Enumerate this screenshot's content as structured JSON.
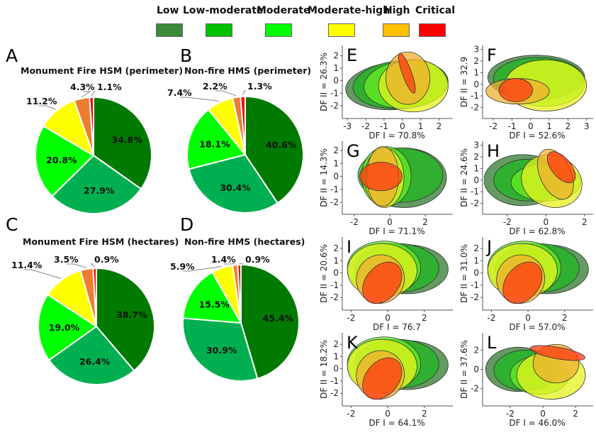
{
  "legend": {
    "items": [
      {
        "label": "Low",
        "color": "#3a8c3a"
      },
      {
        "label": "Low-moderate",
        "color": "#00c000"
      },
      {
        "label": "Moderate",
        "color": "#00ff00"
      },
      {
        "label": "Moderate-high",
        "color": "#ffff00"
      },
      {
        "label": "High",
        "color": "#ffc000"
      },
      {
        "label": "Critical",
        "color": "#ff0000"
      }
    ]
  },
  "chart_data": [
    {
      "panel": "A",
      "type": "pie",
      "title": "Monument Fire HSM (perimeter)",
      "categories": [
        "Low",
        "Low-moderate",
        "Moderate",
        "Moderate-high",
        "High",
        "Critical"
      ],
      "values": [
        34.8,
        27.9,
        20.8,
        11.2,
        4.3,
        1.1
      ],
      "labels": [
        "34.8%",
        "27.9%",
        "20.8%",
        "11.2%",
        "4.3%",
        "1.1%"
      ],
      "colors": [
        "#007a00",
        "#00b050",
        "#00ff00",
        "#ffff00",
        "#ed7d31",
        "#ff0000"
      ]
    },
    {
      "panel": "B",
      "type": "pie",
      "title": "Non-fire HMS (perimeter)",
      "categories": [
        "Low",
        "Low-moderate",
        "Moderate",
        "Moderate-high",
        "High",
        "Critical"
      ],
      "values": [
        40.6,
        30.4,
        18.1,
        7.4,
        2.2,
        1.3
      ],
      "labels": [
        "40.6%",
        "30.4%",
        "18.1%",
        "7.4%",
        "2.2%",
        "1.3%"
      ],
      "colors": [
        "#007a00",
        "#00b050",
        "#00ff00",
        "#ffff00",
        "#ed7d31",
        "#ff0000"
      ]
    },
    {
      "panel": "C",
      "type": "pie",
      "title": "Monument Fire HSM (hectares)",
      "categories": [
        "Low",
        "Low-moderate",
        "Moderate",
        "Moderate-high",
        "High",
        "Critical"
      ],
      "values": [
        38.7,
        26.4,
        19.0,
        11.4,
        3.5,
        0.9
      ],
      "labels": [
        "38.7%",
        "26.4%",
        "19.0%",
        "11.4%",
        "3.5%",
        "0.9%"
      ],
      "colors": [
        "#007a00",
        "#00b050",
        "#00ff00",
        "#ffff00",
        "#ed7d31",
        "#ff0000"
      ]
    },
    {
      "panel": "D",
      "type": "pie",
      "title": "Non-fire HMS (hectares)",
      "categories": [
        "Low",
        "Low-moderate",
        "Moderate",
        "Moderate-high",
        "High",
        "Critical"
      ],
      "values": [
        45.4,
        30.9,
        15.5,
        5.9,
        1.4,
        0.9
      ],
      "labels": [
        "45.4%",
        "30.9%",
        "15.5%",
        "5.9%",
        "1.4%",
        "0.9%"
      ],
      "colors": [
        "#007a00",
        "#00b050",
        "#00ff00",
        "#ffff00",
        "#ed7d31",
        "#ff0000"
      ]
    },
    {
      "panel": "E",
      "type": "scatter",
      "subtype": "ellipses",
      "xlabel": "DF I = 70.8%",
      "ylabel": "DF II = 26.3%",
      "xticks": [
        "-3",
        "-2",
        "-1",
        "0",
        "1",
        "2"
      ],
      "yticks": [
        "2",
        "1",
        "0",
        "-1",
        "-2"
      ],
      "xlim": [
        -3.2,
        2.6
      ],
      "ylim": [
        -2.8,
        2.6
      ],
      "ellipses": [
        {
          "class": "Low",
          "cx": -0.3,
          "cy": -0.4,
          "rx": 2.8,
          "ry": 1.9,
          "angle": 5
        },
        {
          "class": "Low-moderate",
          "cx": -0.1,
          "cy": -0.3,
          "rx": 2.6,
          "ry": 1.9,
          "angle": 5
        },
        {
          "class": "Moderate",
          "cx": 0.2,
          "cy": -0.3,
          "rx": 2.3,
          "ry": 1.9,
          "angle": 5
        },
        {
          "class": "Moderate-high",
          "cx": 0.6,
          "cy": -0.4,
          "rx": 1.9,
          "ry": 2.1,
          "angle": 0
        },
        {
          "class": "High",
          "cx": 0.3,
          "cy": 0.2,
          "rx": 1.2,
          "ry": 2.1,
          "angle": 0
        },
        {
          "class": "Critical",
          "cx": 0.25,
          "cy": 0.6,
          "rx": 0.25,
          "ry": 1.7,
          "angle": 20
        }
      ]
    },
    {
      "panel": "F",
      "type": "scatter",
      "subtype": "ellipses",
      "xlabel": "DF I = 52.6%",
      "ylabel": "DF II = 32.9",
      "xticks": [
        "-2",
        "-1",
        "0",
        "1",
        "2",
        "3"
      ],
      "yticks": [
        "3",
        "2",
        "1",
        "0",
        "-1",
        "-2"
      ],
      "xlim": [
        -2.5,
        3.2
      ],
      "ylim": [
        -2.7,
        3.1
      ],
      "ellipses": [
        {
          "class": "Low",
          "cx": 0.3,
          "cy": 0.6,
          "rx": 2.6,
          "ry": 1.9,
          "angle": 0
        },
        {
          "class": "Low-moderate",
          "cx": 0.4,
          "cy": 0.5,
          "rx": 2.4,
          "ry": 1.8,
          "angle": 0
        },
        {
          "class": "Moderate",
          "cx": 0.8,
          "cy": 0.1,
          "rx": 2.1,
          "ry": 2.0,
          "angle": 0
        },
        {
          "class": "Moderate-high",
          "cx": 0.8,
          "cy": -0.1,
          "rx": 2.2,
          "ry": 2.2,
          "angle": 0
        },
        {
          "class": "High",
          "cx": -0.7,
          "cy": -0.6,
          "rx": 1.7,
          "ry": 1.1,
          "angle": 0
        },
        {
          "class": "Critical",
          "cx": -0.8,
          "cy": -0.5,
          "rx": 0.9,
          "ry": 1.0,
          "angle": 0
        }
      ]
    },
    {
      "panel": "G",
      "type": "scatter",
      "subtype": "ellipses",
      "xlabel": "DF I = 71.1%",
      "ylabel": "DF II = 14.3%",
      "xticks": [
        "-2",
        "0",
        "2"
      ],
      "yticks": [
        "2",
        "1",
        "0",
        "-1",
        "-2"
      ],
      "xlim": [
        -2.6,
        3.4
      ],
      "ylim": [
        -2.7,
        2.5
      ],
      "ellipses": [
        {
          "class": "Low",
          "cx": 0.8,
          "cy": -0.1,
          "rx": 2.4,
          "ry": 2.3,
          "angle": 0
        },
        {
          "class": "Low-moderate",
          "cx": 0.6,
          "cy": 0.1,
          "rx": 2.4,
          "ry": 2.1,
          "angle": 0
        },
        {
          "class": "Moderate",
          "cx": -0.2,
          "cy": 0.0,
          "rx": 1.4,
          "ry": 2.3,
          "angle": 0
        },
        {
          "class": "Moderate-high",
          "cx": -0.3,
          "cy": -0.1,
          "rx": 1.1,
          "ry": 2.3,
          "angle": 0
        },
        {
          "class": "High",
          "cx": -0.4,
          "cy": 0.0,
          "rx": 0.9,
          "ry": 2.3,
          "angle": 0
        },
        {
          "class": "Critical",
          "cx": -0.5,
          "cy": 0.0,
          "rx": 1.2,
          "ry": 1.1,
          "angle": 0
        }
      ]
    },
    {
      "panel": "H",
      "type": "scatter",
      "subtype": "ellipses",
      "xlabel": "DF I = 62.8%",
      "ylabel": "DF II = 24.6%",
      "xticks": [
        "-2",
        "0",
        "2"
      ],
      "yticks": [
        "3",
        "2",
        "1",
        "0",
        "-1",
        "-2"
      ],
      "xlim": [
        -3.2,
        2.3
      ],
      "ylim": [
        -2.7,
        3.1
      ],
      "ellipses": [
        {
          "class": "Low",
          "cx": -1.2,
          "cy": 0.0,
          "rx": 2.0,
          "ry": 2.2,
          "angle": 0
        },
        {
          "class": "Low-moderate",
          "cx": -0.9,
          "cy": 0.0,
          "rx": 1.8,
          "ry": 1.8,
          "angle": 0
        },
        {
          "class": "Moderate",
          "cx": 0.0,
          "cy": -0.2,
          "rx": 1.8,
          "ry": 1.6,
          "angle": 0
        },
        {
          "class": "Moderate-high",
          "cx": 0.3,
          "cy": -0.1,
          "rx": 1.6,
          "ry": 2.2,
          "angle": -20
        },
        {
          "class": "High",
          "cx": 0.5,
          "cy": 0.5,
          "rx": 0.8,
          "ry": 2.3,
          "angle": 25
        },
        {
          "class": "Critical",
          "cx": 0.8,
          "cy": 1.1,
          "rx": 0.5,
          "ry": 1.6,
          "angle": 40
        }
      ]
    },
    {
      "panel": "I",
      "type": "scatter",
      "subtype": "ellipses",
      "xlabel": "DF I = 76.7",
      "ylabel": "DF II = 20.6%",
      "xticks": [
        "-2",
        "0",
        "2"
      ],
      "yticks": [
        "2",
        "1",
        "0",
        "-1",
        "-2"
      ],
      "xlim": [
        -2.4,
        3.4
      ],
      "ylim": [
        -2.8,
        2.7
      ],
      "ellipses": [
        {
          "class": "Low",
          "cx": 1.0,
          "cy": 0.3,
          "rx": 2.3,
          "ry": 2.0,
          "angle": 0
        },
        {
          "class": "Low-moderate",
          "cx": 0.5,
          "cy": 0.4,
          "rx": 2.3,
          "ry": 2.0,
          "angle": 0
        },
        {
          "class": "Moderate",
          "cx": -0.2,
          "cy": 0.4,
          "rx": 2.0,
          "ry": 2.2,
          "angle": 0
        },
        {
          "class": "Moderate-high",
          "cx": -0.3,
          "cy": 0.2,
          "rx": 1.9,
          "ry": 2.2,
          "angle": 0
        },
        {
          "class": "High",
          "cx": -0.4,
          "cy": -0.5,
          "rx": 1.3,
          "ry": 2.0,
          "angle": -35
        },
        {
          "class": "Critical",
          "cx": -0.3,
          "cy": -0.8,
          "rx": 0.9,
          "ry": 1.9,
          "angle": -40
        }
      ]
    },
    {
      "panel": "J",
      "type": "scatter",
      "subtype": "ellipses",
      "xlabel": "DF I = 57.0%",
      "ylabel": "DF II = 31.0%",
      "xticks": [
        "-2",
        "0",
        "2"
      ],
      "yticks": [
        "2",
        "1",
        "0",
        "-1",
        "-2"
      ],
      "xlim": [
        -2.4,
        3.4
      ],
      "ylim": [
        -2.8,
        2.7
      ],
      "ellipses": [
        {
          "class": "Low",
          "cx": 1.0,
          "cy": 0.3,
          "rx": 2.3,
          "ry": 2.0,
          "angle": 0
        },
        {
          "class": "Low-moderate",
          "cx": 0.5,
          "cy": 0.4,
          "rx": 2.3,
          "ry": 2.0,
          "angle": 0
        },
        {
          "class": "Moderate",
          "cx": -0.2,
          "cy": 0.4,
          "rx": 2.0,
          "ry": 2.2,
          "angle": 0
        },
        {
          "class": "Moderate-high",
          "cx": -0.3,
          "cy": 0.2,
          "rx": 1.9,
          "ry": 2.2,
          "angle": 0
        },
        {
          "class": "High",
          "cx": -0.4,
          "cy": -0.5,
          "rx": 1.3,
          "ry": 2.0,
          "angle": -35
        },
        {
          "class": "Critical",
          "cx": -0.3,
          "cy": -0.8,
          "rx": 0.9,
          "ry": 1.9,
          "angle": -40
        }
      ]
    },
    {
      "panel": "K",
      "type": "scatter",
      "subtype": "ellipses",
      "xlabel": "DF I = 64.1%",
      "ylabel": "DF II = 18.2%",
      "xticks": [
        "-2",
        "0",
        "2"
      ],
      "yticks": [
        "2",
        "1",
        "0",
        "-1",
        "-2"
      ],
      "xlim": [
        -2.4,
        3.4
      ],
      "ylim": [
        -2.8,
        2.7
      ],
      "ellipses": [
        {
          "class": "Low",
          "cx": 1.0,
          "cy": 0.3,
          "rx": 2.3,
          "ry": 2.0,
          "angle": 0
        },
        {
          "class": "Low-moderate",
          "cx": 0.5,
          "cy": 0.4,
          "rx": 2.3,
          "ry": 2.0,
          "angle": 0
        },
        {
          "class": "Moderate",
          "cx": -0.2,
          "cy": 0.4,
          "rx": 2.0,
          "ry": 2.2,
          "angle": 0
        },
        {
          "class": "Moderate-high",
          "cx": -0.3,
          "cy": 0.2,
          "rx": 1.9,
          "ry": 2.2,
          "angle": 0
        },
        {
          "class": "High",
          "cx": -0.4,
          "cy": -0.5,
          "rx": 1.3,
          "ry": 2.0,
          "angle": -35
        },
        {
          "class": "Critical",
          "cx": -0.3,
          "cy": -0.8,
          "rx": 0.9,
          "ry": 1.9,
          "angle": -40
        }
      ]
    },
    {
      "panel": "L",
      "type": "scatter",
      "subtype": "ellipses",
      "xlabel": "DF I = 46.0%",
      "ylabel": "DF II = 37.6%",
      "xticks": [
        "-2",
        "0",
        "2"
      ],
      "yticks": [
        "2",
        "0",
        "-2"
      ],
      "xlim": [
        -3.6,
        2.9
      ],
      "ylim": [
        -3.5,
        3.5
      ],
      "ellipses": [
        {
          "class": "Low",
          "cx": -1.5,
          "cy": 0.0,
          "rx": 2.0,
          "ry": 2.3,
          "angle": 0
        },
        {
          "class": "Low-moderate",
          "cx": -1.0,
          "cy": -0.1,
          "rx": 2.0,
          "ry": 2.1,
          "angle": 0
        },
        {
          "class": "Moderate",
          "cx": -0.2,
          "cy": -0.6,
          "rx": 1.8,
          "ry": 2.0,
          "angle": 0
        },
        {
          "class": "Moderate-high",
          "cx": 0.5,
          "cy": -0.6,
          "rx": 2.1,
          "ry": 2.5,
          "angle": 0
        },
        {
          "class": "High",
          "cx": 0.8,
          "cy": 0.6,
          "rx": 1.4,
          "ry": 2.0,
          "angle": 0
        },
        {
          "class": "Critical",
          "cx": 0.9,
          "cy": 1.7,
          "rx": 1.7,
          "ry": 0.6,
          "angle": -10
        }
      ]
    }
  ],
  "ellipse_colors": {
    "Low": "#2f7a2f",
    "Low-moderate": "#1fb51f",
    "Moderate": "#66ee22",
    "Moderate-high": "#e6f21e",
    "High": "#f0b030",
    "Critical": "#ff3a10"
  }
}
